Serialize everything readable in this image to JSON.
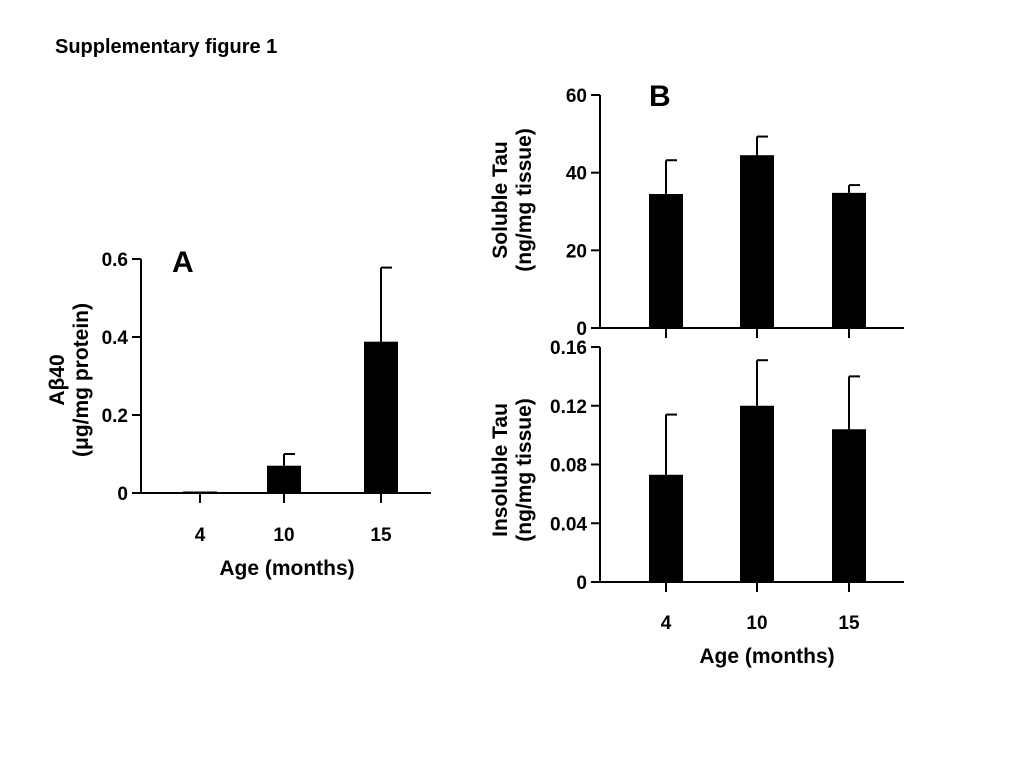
{
  "figure": {
    "title": "Supplementary figure 1"
  },
  "chart_data": [
    {
      "id": "A",
      "type": "bar",
      "panel_label": "A",
      "categories": [
        "4",
        "10",
        "15"
      ],
      "values": [
        0.003,
        0.07,
        0.388
      ],
      "errors": [
        0.0,
        0.03,
        0.19
      ],
      "ylim": [
        0,
        0.6
      ],
      "yticks": [
        0,
        0.2,
        0.4,
        0.6
      ],
      "ytick_labels": [
        "0",
        "0.2",
        "0.4",
        "0.6"
      ],
      "xlabel": "Age (months)",
      "ylabel_lines": [
        "Aβ40",
        "(μg/mg protein)"
      ],
      "grid": false,
      "legend": "none",
      "color": "#000000"
    },
    {
      "id": "B1",
      "type": "bar",
      "panel_label": "B",
      "categories": [
        "4",
        "10",
        "15"
      ],
      "values": [
        34.5,
        44.5,
        34.8
      ],
      "errors": [
        8.7,
        4.8,
        2.0
      ],
      "ylim": [
        0,
        60
      ],
      "yticks": [
        0,
        20,
        40,
        60
      ],
      "ytick_labels": [
        "0",
        "20",
        "40",
        "60"
      ],
      "xlabel": "",
      "ylabel_lines": [
        "Soluble Tau",
        "(ng/mg tissue)"
      ],
      "grid": false,
      "legend": "none",
      "color": "#000000"
    },
    {
      "id": "B2",
      "type": "bar",
      "panel_label": "",
      "categories": [
        "4",
        "10",
        "15"
      ],
      "values": [
        0.073,
        0.12,
        0.104
      ],
      "errors": [
        0.041,
        0.031,
        0.036
      ],
      "ylim": [
        0,
        0.16
      ],
      "yticks": [
        0,
        0.04,
        0.08,
        0.12,
        0.16
      ],
      "ytick_labels": [
        "0",
        "0.04",
        "0.08",
        "0.12",
        "0.16"
      ],
      "xlabel": "Age (months)",
      "ylabel_lines": [
        "Insoluble Tau",
        "(ng/mg tissue)"
      ],
      "grid": false,
      "legend": "none",
      "color": "#000000"
    }
  ]
}
